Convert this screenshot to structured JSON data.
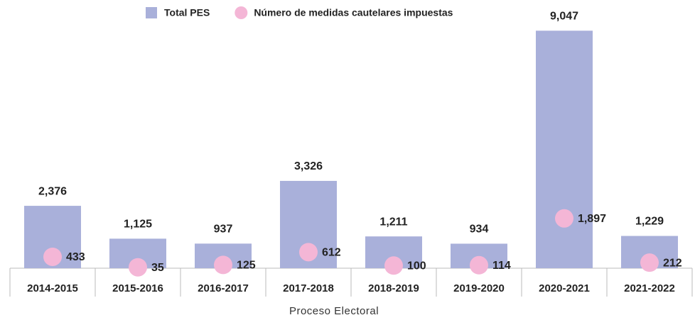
{
  "chart_data": {
    "type": "bar",
    "x_label": "Proceso Electoral",
    "categories": [
      "2014-2015",
      "2015-2016",
      "2016-2017",
      "2017-2018",
      "2018-2019",
      "2019-2020",
      "2020-2021",
      "2021-2022"
    ],
    "series": [
      {
        "name": "Total PES",
        "color": "#a9b0da",
        "mark": "bar",
        "values": [
          2376,
          1125,
          937,
          3326,
          1211,
          934,
          9047,
          1229
        ],
        "value_labels": [
          "2,376",
          "1,125",
          "937",
          "3,326",
          "1,211",
          "934",
          "9,047",
          "1,229"
        ]
      },
      {
        "name": "Número de medidas cautelares impuestas",
        "color": "#f4b6d6",
        "mark": "circle",
        "values": [
          433,
          35,
          125,
          612,
          100,
          114,
          1897,
          212
        ],
        "value_labels": [
          "433",
          "35",
          "125",
          "612",
          "100",
          "114",
          "1,897",
          "212"
        ]
      }
    ],
    "ylim": [
      0,
      10000
    ]
  }
}
